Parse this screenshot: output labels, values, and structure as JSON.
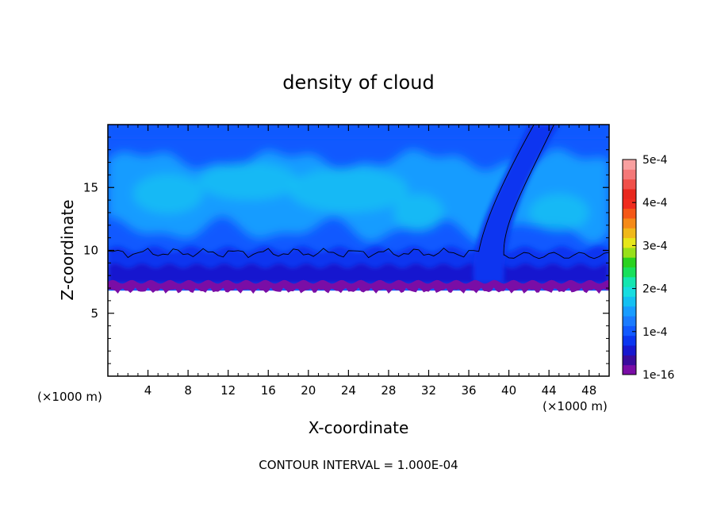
{
  "chart_data": {
    "type": "heatmap",
    "title": "density of cloud",
    "xlabel": "X-coordinate",
    "ylabel": "Z-coordinate",
    "x_unit": "(×1000 m)",
    "x_unit_right": "(×1000 m)",
    "footer": "CONTOUR INTERVAL = 1.000E-04",
    "xlim": [
      0,
      50
    ],
    "ylim": [
      0,
      20
    ],
    "x_ticks": [
      4,
      8,
      12,
      16,
      20,
      24,
      28,
      32,
      36,
      40,
      44,
      48
    ],
    "y_ticks": [
      5,
      10,
      15
    ],
    "colorbar": {
      "range": [
        0,
        0.0005
      ],
      "tick_values": [
        0,
        0.0001,
        0.0002,
        0.0003,
        0.0004,
        0.0005
      ],
      "tick_labels": [
        "1e-16",
        "1e-4",
        "2e-4",
        "3e-4",
        "4e-4",
        "5e-4"
      ],
      "colors": [
        "#7a0da6",
        "#3a0c9c",
        "#1818cf",
        "#0b36f0",
        "#1159ff",
        "#1a7bff",
        "#189cff",
        "#14c0f2",
        "#18dde0",
        "#14e6b0",
        "#18e05a",
        "#2ad21f",
        "#98e01a",
        "#e6e61a",
        "#f0b81a",
        "#f58a18",
        "#f55818",
        "#f02c1e",
        "#e8281e",
        "#f0504a",
        "#f47878",
        "#f8a0a0"
      ]
    },
    "cloud_base_km": 6.8,
    "contour_level": 0.0001,
    "field_description_levels": {
      "upper_layer": 0.00014,
      "mid_layer": 0.00011,
      "lower_layer": 8e-05,
      "base_layer": 1e-05
    }
  }
}
